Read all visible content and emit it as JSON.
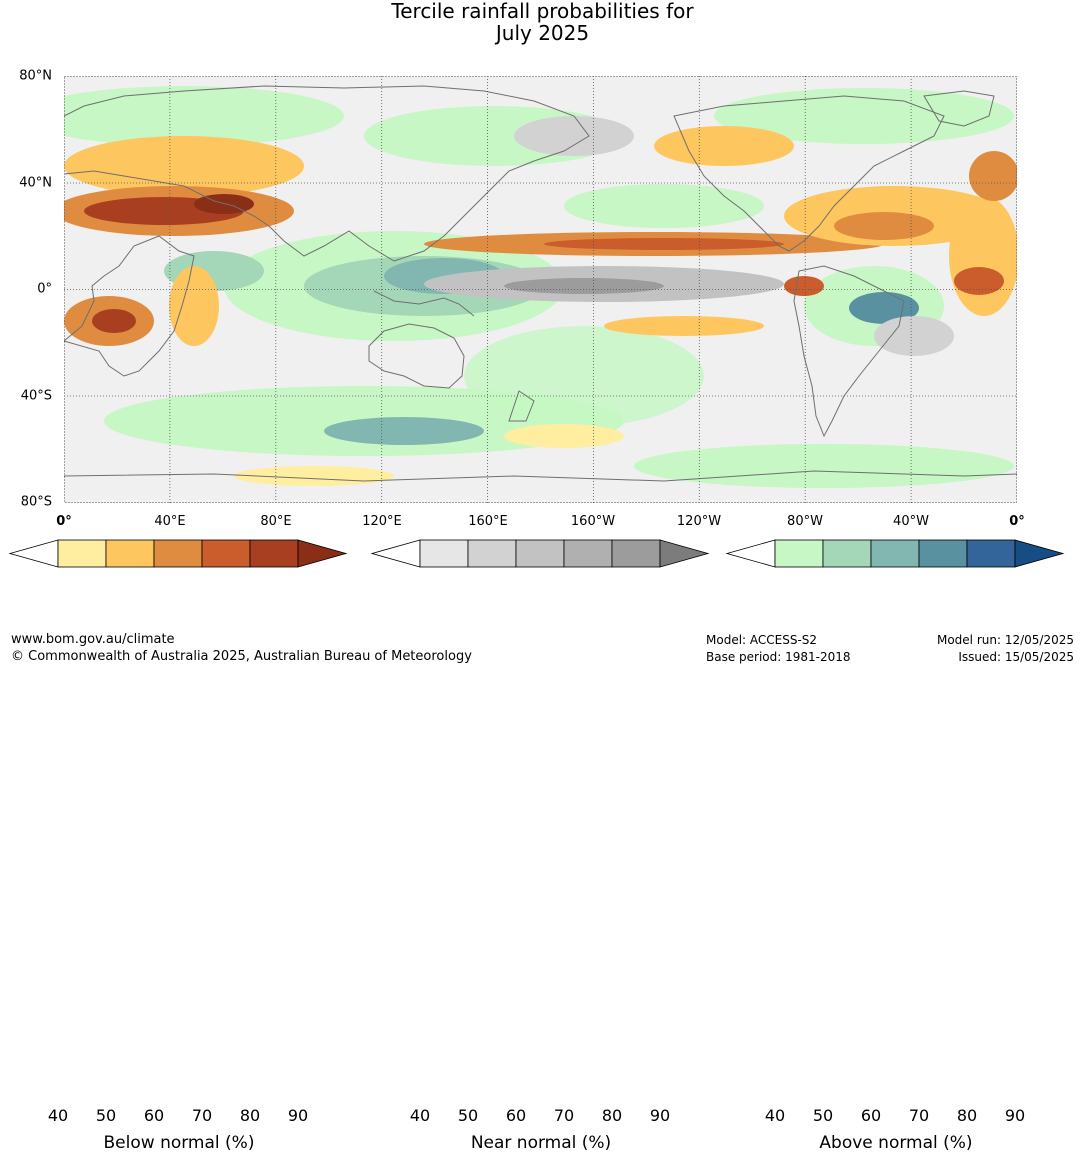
{
  "title": {
    "line1": "Tercile rainfall probabilities for",
    "line2": "July 2025"
  },
  "map": {
    "lat_labels": [
      "80°N",
      "40°N",
      "0°",
      "40°S",
      "80°S"
    ],
    "lon_labels": [
      "0°",
      "40°E",
      "80°E",
      "120°E",
      "160°E",
      "160°W",
      "120°W",
      "80°W",
      "40°W",
      "0°"
    ],
    "ocean_color": "#f4f4f4",
    "coastline_color": "#6f6f6f",
    "grid": "dotted"
  },
  "colorbars": [
    {
      "name": "below",
      "label": "Below normal (%)",
      "ticks": [
        "40",
        "50",
        "60",
        "70",
        "80",
        "90"
      ],
      "colors": [
        "#ffffff",
        "#ffeda0",
        "#fec65e",
        "#e08c40",
        "#cb5c2b",
        "#a83f20",
        "#8a2e17"
      ]
    },
    {
      "name": "near",
      "label": "Near normal (%)",
      "ticks": [
        "40",
        "50",
        "60",
        "70",
        "80",
        "90"
      ],
      "colors": [
        "#ffffff",
        "#e6e6e6",
        "#d2d2d2",
        "#c2c2c2",
        "#b0b0b0",
        "#9c9c9c",
        "#7c7c7c"
      ]
    },
    {
      "name": "above",
      "label": "Above normal (%)",
      "ticks": [
        "40",
        "50",
        "60",
        "70",
        "80",
        "90"
      ],
      "colors": [
        "#ffffff",
        "#c6f7c4",
        "#a4d6b8",
        "#82b6b0",
        "#5a91a0",
        "#33649a",
        "#174d85"
      ]
    }
  ],
  "footer": {
    "website": "www.bom.gov.au/climate",
    "copyright": "© Commonwealth of Australia 2025, Australian Bureau of Meteorology",
    "model": "Model: ACCESS-S2",
    "base_period": "Base period: 1981-2018",
    "model_run": "Model run: 12/05/2025",
    "issued": "Issued: 15/05/2025"
  }
}
